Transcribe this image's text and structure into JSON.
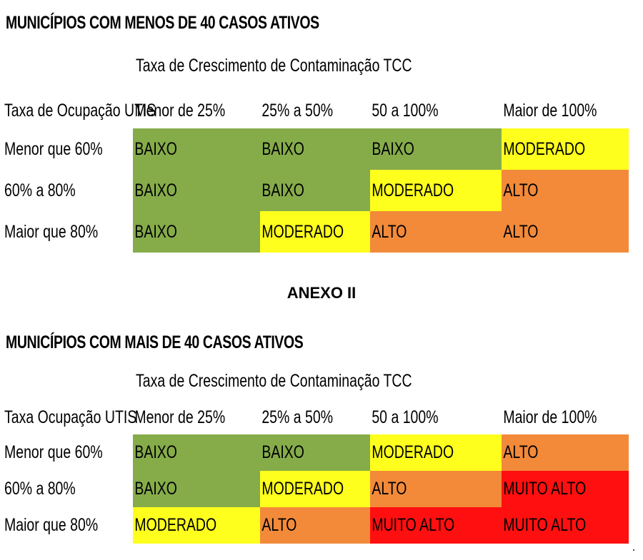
{
  "colors": {
    "BAIXO": "#86ac4a",
    "MODERADO": "#ffff1d",
    "ALTO": "#f28a3a",
    "MUITO ALTO": "#ff0f0f"
  },
  "table1": {
    "title": "MUNICÍPIOS COM MENOS DE 40 CASOS ATIVOS",
    "tcc_label": "Taxa de Crescimento de Contaminação TCC",
    "row_header": "Taxa de Ocupação UTIS",
    "columns": [
      "Menor de 25%",
      "25% a 50%",
      "50 a 100%",
      "Maior de 100%"
    ],
    "rows": [
      {
        "label": "Menor que 60%",
        "cells": [
          "BAIXO",
          "BAIXO",
          "BAIXO",
          "MODERADO"
        ]
      },
      {
        "label": "60% a 80%",
        "cells": [
          "BAIXO",
          "BAIXO",
          "MODERADO",
          "ALTO"
        ]
      },
      {
        "label": "Maior que 80%",
        "cells": [
          "BAIXO",
          "MODERADO",
          "ALTO",
          "ALTO"
        ]
      }
    ]
  },
  "annex_label": "ANEXO II",
  "table2": {
    "title": "MUNICÍPIOS COM MAIS DE 40 CASOS ATIVOS",
    "tcc_label": "Taxa de Crescimento de Contaminação TCC",
    "row_header": "Taxa Ocupação UTIS",
    "columns": [
      "Menor de 25%",
      "25% a 50%",
      "50 a 100%",
      "Maior de 100%"
    ],
    "rows": [
      {
        "label": "Menor que 60%",
        "cells": [
          "BAIXO",
          "BAIXO",
          "MODERADO",
          "ALTO"
        ]
      },
      {
        "label": "60% a 80%",
        "cells": [
          "BAIXO",
          "MODERADO",
          "ALTO",
          "MUITO ALTO"
        ]
      },
      {
        "label": "Maior que 80%",
        "cells": [
          "MODERADO",
          "ALTO",
          "MUITO ALTO",
          "MUITO ALTO"
        ]
      }
    ]
  }
}
